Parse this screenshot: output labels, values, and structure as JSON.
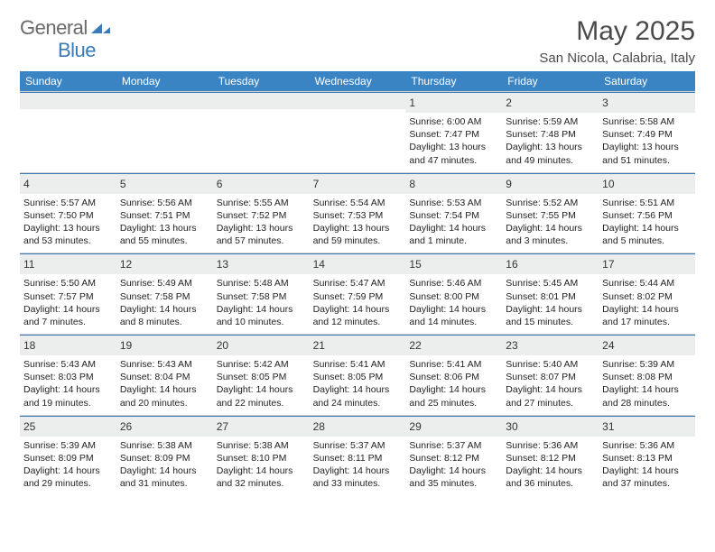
{
  "logo": {
    "general": "General",
    "blue": "Blue"
  },
  "title": "May 2025",
  "location": "San Nicola, Calabria, Italy",
  "colors": {
    "header_bg": "#3a84c4",
    "accent_line": "#3a7ab8",
    "daynum_bg": "#eceeee",
    "text_main": "#222222",
    "text_muted": "#6a6a6a"
  },
  "weekdays": [
    "Sunday",
    "Monday",
    "Tuesday",
    "Wednesday",
    "Thursday",
    "Friday",
    "Saturday"
  ],
  "weeks": [
    [
      null,
      null,
      null,
      null,
      {
        "n": "1",
        "sr": "6:00 AM",
        "ss": "7:47 PM",
        "dl": "13 hours and 47 minutes."
      },
      {
        "n": "2",
        "sr": "5:59 AM",
        "ss": "7:48 PM",
        "dl": "13 hours and 49 minutes."
      },
      {
        "n": "3",
        "sr": "5:58 AM",
        "ss": "7:49 PM",
        "dl": "13 hours and 51 minutes."
      }
    ],
    [
      {
        "n": "4",
        "sr": "5:57 AM",
        "ss": "7:50 PM",
        "dl": "13 hours and 53 minutes."
      },
      {
        "n": "5",
        "sr": "5:56 AM",
        "ss": "7:51 PM",
        "dl": "13 hours and 55 minutes."
      },
      {
        "n": "6",
        "sr": "5:55 AM",
        "ss": "7:52 PM",
        "dl": "13 hours and 57 minutes."
      },
      {
        "n": "7",
        "sr": "5:54 AM",
        "ss": "7:53 PM",
        "dl": "13 hours and 59 minutes."
      },
      {
        "n": "8",
        "sr": "5:53 AM",
        "ss": "7:54 PM",
        "dl": "14 hours and 1 minute."
      },
      {
        "n": "9",
        "sr": "5:52 AM",
        "ss": "7:55 PM",
        "dl": "14 hours and 3 minutes."
      },
      {
        "n": "10",
        "sr": "5:51 AM",
        "ss": "7:56 PM",
        "dl": "14 hours and 5 minutes."
      }
    ],
    [
      {
        "n": "11",
        "sr": "5:50 AM",
        "ss": "7:57 PM",
        "dl": "14 hours and 7 minutes."
      },
      {
        "n": "12",
        "sr": "5:49 AM",
        "ss": "7:58 PM",
        "dl": "14 hours and 8 minutes."
      },
      {
        "n": "13",
        "sr": "5:48 AM",
        "ss": "7:58 PM",
        "dl": "14 hours and 10 minutes."
      },
      {
        "n": "14",
        "sr": "5:47 AM",
        "ss": "7:59 PM",
        "dl": "14 hours and 12 minutes."
      },
      {
        "n": "15",
        "sr": "5:46 AM",
        "ss": "8:00 PM",
        "dl": "14 hours and 14 minutes."
      },
      {
        "n": "16",
        "sr": "5:45 AM",
        "ss": "8:01 PM",
        "dl": "14 hours and 15 minutes."
      },
      {
        "n": "17",
        "sr": "5:44 AM",
        "ss": "8:02 PM",
        "dl": "14 hours and 17 minutes."
      }
    ],
    [
      {
        "n": "18",
        "sr": "5:43 AM",
        "ss": "8:03 PM",
        "dl": "14 hours and 19 minutes."
      },
      {
        "n": "19",
        "sr": "5:43 AM",
        "ss": "8:04 PM",
        "dl": "14 hours and 20 minutes."
      },
      {
        "n": "20",
        "sr": "5:42 AM",
        "ss": "8:05 PM",
        "dl": "14 hours and 22 minutes."
      },
      {
        "n": "21",
        "sr": "5:41 AM",
        "ss": "8:05 PM",
        "dl": "14 hours and 24 minutes."
      },
      {
        "n": "22",
        "sr": "5:41 AM",
        "ss": "8:06 PM",
        "dl": "14 hours and 25 minutes."
      },
      {
        "n": "23",
        "sr": "5:40 AM",
        "ss": "8:07 PM",
        "dl": "14 hours and 27 minutes."
      },
      {
        "n": "24",
        "sr": "5:39 AM",
        "ss": "8:08 PM",
        "dl": "14 hours and 28 minutes."
      }
    ],
    [
      {
        "n": "25",
        "sr": "5:39 AM",
        "ss": "8:09 PM",
        "dl": "14 hours and 29 minutes."
      },
      {
        "n": "26",
        "sr": "5:38 AM",
        "ss": "8:09 PM",
        "dl": "14 hours and 31 minutes."
      },
      {
        "n": "27",
        "sr": "5:38 AM",
        "ss": "8:10 PM",
        "dl": "14 hours and 32 minutes."
      },
      {
        "n": "28",
        "sr": "5:37 AM",
        "ss": "8:11 PM",
        "dl": "14 hours and 33 minutes."
      },
      {
        "n": "29",
        "sr": "5:37 AM",
        "ss": "8:12 PM",
        "dl": "14 hours and 35 minutes."
      },
      {
        "n": "30",
        "sr": "5:36 AM",
        "ss": "8:12 PM",
        "dl": "14 hours and 36 minutes."
      },
      {
        "n": "31",
        "sr": "5:36 AM",
        "ss": "8:13 PM",
        "dl": "14 hours and 37 minutes."
      }
    ]
  ],
  "labels": {
    "sunrise": "Sunrise:",
    "sunset": "Sunset:",
    "daylight": "Daylight:"
  }
}
